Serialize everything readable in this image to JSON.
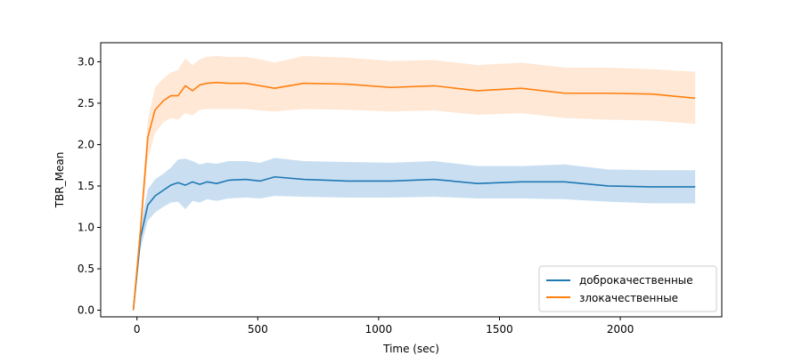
{
  "chart_data": {
    "type": "line",
    "xlabel": "Time (sec)",
    "ylabel": "TBR_Mean",
    "xlim": [
      -150,
      2420
    ],
    "ylim": [
      -0.08,
      3.23
    ],
    "xticks": [
      0,
      500,
      1000,
      1500,
      2000
    ],
    "yticks": [
      0.0,
      0.5,
      1.0,
      1.5,
      2.0,
      2.5,
      3.0
    ],
    "xtick_labels": [
      "0",
      "500",
      "1000",
      "1500",
      "2000"
    ],
    "ytick_labels": [
      "0.0",
      "0.5",
      "1.0",
      "1.5",
      "2.0",
      "2.5",
      "3.0"
    ],
    "grid": false,
    "legend_position": "lower-right",
    "series": [
      {
        "name": "доброкачественные",
        "color": "#1f77b4",
        "band_color": "#c9dff1",
        "x": [
          -15,
          15,
          45,
          75,
          110,
          140,
          170,
          200,
          230,
          260,
          290,
          330,
          380,
          450,
          510,
          570,
          690,
          870,
          1050,
          1230,
          1410,
          1590,
          1770,
          1950,
          2130,
          2310
        ],
        "y": [
          0.0,
          0.88,
          1.27,
          1.38,
          1.45,
          1.51,
          1.54,
          1.51,
          1.55,
          1.52,
          1.55,
          1.53,
          1.57,
          1.58,
          1.56,
          1.61,
          1.58,
          1.56,
          1.56,
          1.58,
          1.53,
          1.55,
          1.55,
          1.5,
          1.49,
          1.49
        ],
        "lower": [
          0.0,
          0.75,
          1.08,
          1.18,
          1.25,
          1.3,
          1.31,
          1.22,
          1.32,
          1.3,
          1.34,
          1.32,
          1.35,
          1.36,
          1.35,
          1.38,
          1.37,
          1.36,
          1.36,
          1.37,
          1.35,
          1.35,
          1.34,
          1.31,
          1.29,
          1.29
        ],
        "upper": [
          0.0,
          1.02,
          1.46,
          1.58,
          1.65,
          1.72,
          1.82,
          1.83,
          1.8,
          1.76,
          1.78,
          1.77,
          1.8,
          1.8,
          1.78,
          1.84,
          1.8,
          1.79,
          1.78,
          1.8,
          1.74,
          1.74,
          1.76,
          1.7,
          1.69,
          1.69
        ]
      },
      {
        "name": "злокачественные",
        "color": "#ff7f0e",
        "band_color": "#ffe8d6",
        "x": [
          -15,
          15,
          45,
          75,
          110,
          140,
          170,
          200,
          230,
          260,
          290,
          330,
          380,
          450,
          510,
          570,
          690,
          870,
          1050,
          1230,
          1410,
          1590,
          1770,
          1950,
          2130,
          2310
        ],
        "y": [
          0.0,
          0.98,
          2.09,
          2.42,
          2.53,
          2.59,
          2.59,
          2.71,
          2.65,
          2.72,
          2.74,
          2.75,
          2.74,
          2.74,
          2.71,
          2.68,
          2.74,
          2.73,
          2.69,
          2.71,
          2.65,
          2.68,
          2.62,
          2.62,
          2.61,
          2.56
        ],
        "lower": [
          0.0,
          0.85,
          1.83,
          2.14,
          2.27,
          2.32,
          2.3,
          2.38,
          2.35,
          2.42,
          2.43,
          2.43,
          2.43,
          2.43,
          2.41,
          2.4,
          2.43,
          2.42,
          2.4,
          2.41,
          2.36,
          2.38,
          2.32,
          2.3,
          2.29,
          2.25
        ],
        "upper": [
          0.0,
          1.12,
          2.3,
          2.69,
          2.8,
          2.87,
          2.9,
          3.04,
          2.96,
          3.03,
          3.06,
          3.07,
          3.06,
          3.06,
          3.03,
          2.99,
          3.07,
          3.05,
          3.01,
          3.02,
          2.96,
          2.99,
          2.93,
          2.93,
          2.91,
          2.88
        ]
      }
    ]
  }
}
